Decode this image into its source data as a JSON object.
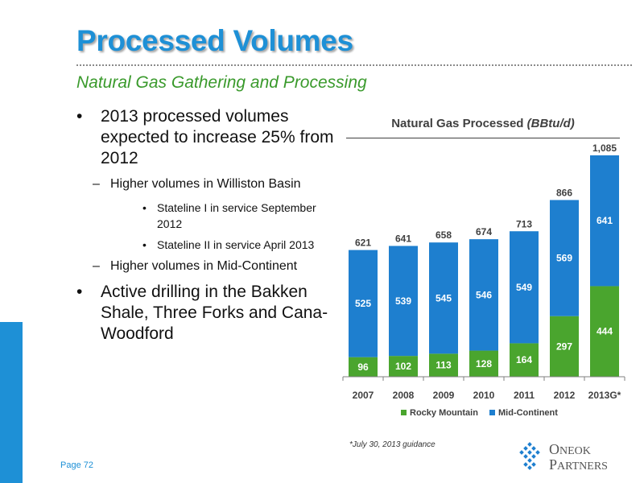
{
  "slide": {
    "title": "Processed Volumes",
    "subtitle": "Natural Gas Gathering and Processing",
    "page_label": "Page 72",
    "footnote": "*July 30, 2013 guidance"
  },
  "bullets": {
    "b1": "2013 processed volumes expected to increase 25% from 2012",
    "b1_1": "Higher volumes in Williston Basin",
    "b1_1_1": "Stateline I in service September 2012",
    "b1_1_2": "Stateline II in service April 2013",
    "b1_2": "Higher volumes in Mid-Continent",
    "b2": "Active drilling in the Bakken Shale, Three Forks and Cana-Woodford"
  },
  "logo": {
    "line1_initial": "O",
    "line1_rest": "NEOK",
    "line2_initial": "P",
    "line2_rest": "ARTNERS",
    "icon": "oneok-diamond-logo-icon"
  },
  "colors": {
    "rocky": "#4aa52e",
    "midcon": "#1e7fcf",
    "title": "#1e90d6",
    "subtitle": "#3a9a2c"
  },
  "chart_data": {
    "type": "bar",
    "stacked": true,
    "title": "Natural Gas Processed",
    "title_unit": "(BBtu/d)",
    "categories": [
      "2007",
      "2008",
      "2009",
      "2010",
      "2011",
      "2012",
      "2013G*"
    ],
    "series": [
      {
        "name": "Rocky Mountain",
        "values": [
          96,
          102,
          113,
          128,
          164,
          297,
          444
        ],
        "color": "#4aa52e"
      },
      {
        "name": "Mid-Continent",
        "values": [
          525,
          539,
          545,
          546,
          549,
          569,
          641
        ],
        "color": "#1e7fcf"
      }
    ],
    "total_labels": [
      "621",
      "641",
      "658",
      "674",
      "713",
      "866",
      "1,085"
    ],
    "legend_position": "bottom",
    "grid": false
  }
}
